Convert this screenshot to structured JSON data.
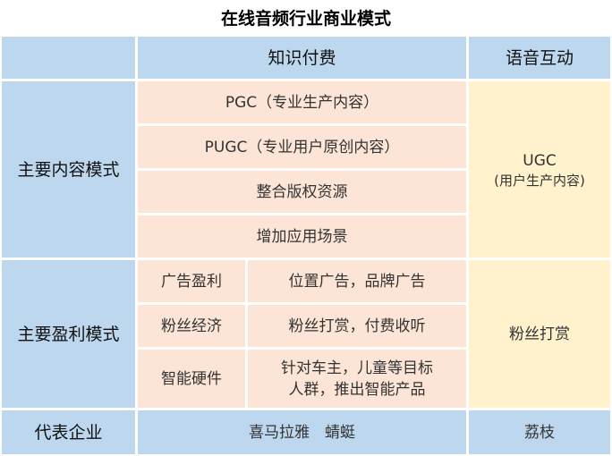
{
  "title": "在线音频行业商业模式",
  "header": {
    "col2": "知识付费",
    "col3": "语音互动"
  },
  "content_model": {
    "label": "主要内容模式",
    "items": [
      "PGC（专业生产内容）",
      "PUGC（专业用户原创内容）",
      "整合版权资源",
      "增加应用场景"
    ],
    "interactive": {
      "main": "UGC",
      "sub": "(用户生产内容)"
    }
  },
  "profit_model": {
    "label": "主要盈利模式",
    "rows": [
      {
        "type": "广告盈利",
        "desc": "位置广告，品牌广告"
      },
      {
        "type": "粉丝经济",
        "desc": "粉丝打赏，付费收听"
      },
      {
        "type": "智能硬件",
        "desc_line1": "针对车主，儿童等目标",
        "desc_line2": "人群，推出智能产品"
      }
    ],
    "interactive": "粉丝打赏"
  },
  "companies": {
    "label": "代表企业",
    "paid": "喜马拉雅　蜻蜓",
    "interactive": "荔枝"
  },
  "colors": {
    "header": "#BDD7EE",
    "paid": "#FCE4D6",
    "interactive": "#FFF2CC"
  }
}
